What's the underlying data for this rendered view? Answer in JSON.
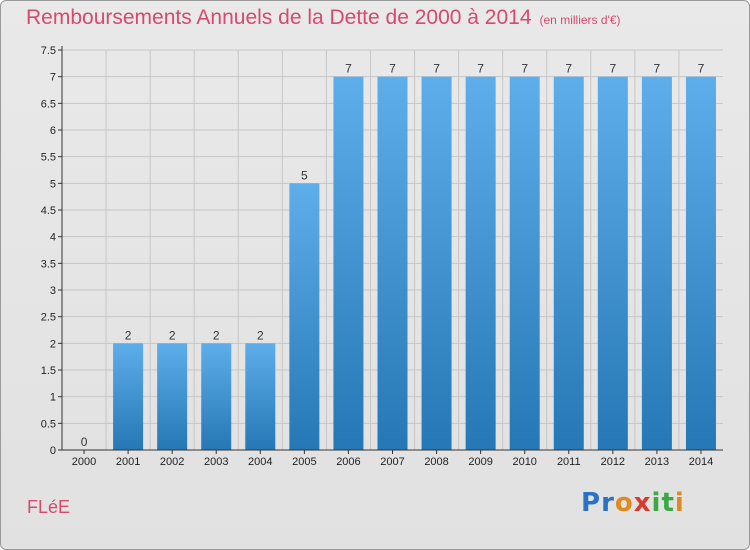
{
  "title": "Remboursements Annuels de la Dette de 2000 à 2014",
  "subtitle": "(en milliers d'€)",
  "commune": "FLéE",
  "logo": {
    "letters": [
      "P",
      "r",
      "o",
      "x",
      "i",
      "t",
      "i"
    ],
    "colors": [
      "#2a72c4",
      "#2a72c4",
      "#e08a1e",
      "#d93a2b",
      "#3aa843",
      "#3aa843",
      "#e08a1e"
    ]
  },
  "colors": {
    "title": "#d54a6e",
    "bar_top": "#5daeea",
    "bar_bottom": "#2677b5",
    "grid": "#c6c6c6",
    "axis": "#333333"
  },
  "chart_data": {
    "type": "bar",
    "categories": [
      "2000",
      "2001",
      "2002",
      "2003",
      "2004",
      "2005",
      "2006",
      "2007",
      "2008",
      "2009",
      "2010",
      "2011",
      "2012",
      "2013",
      "2014"
    ],
    "values": [
      0,
      2,
      2,
      2,
      2,
      5,
      7,
      7,
      7,
      7,
      7,
      7,
      7,
      7,
      7
    ],
    "data_labels": [
      "0",
      "2",
      "2",
      "2",
      "2",
      "5",
      "7",
      "7",
      "7",
      "7",
      "7",
      "7",
      "7",
      "7",
      "7"
    ],
    "y_ticks": [
      0,
      0.5,
      1,
      1.5,
      2,
      2.5,
      3,
      3.5,
      4,
      4.5,
      5,
      5.5,
      6,
      6.5,
      7,
      7.5
    ],
    "y_tick_labels": [
      "0",
      "0.5",
      "1",
      "1.5",
      "2",
      "2.5",
      "3",
      "3.5",
      "4",
      "4.5",
      "5",
      "5.5",
      "6",
      "6.5",
      "7",
      "7.5"
    ],
    "ylim": [
      0,
      7.5
    ],
    "xlabel": "",
    "ylabel": "",
    "grid": true,
    "legend": "none"
  }
}
